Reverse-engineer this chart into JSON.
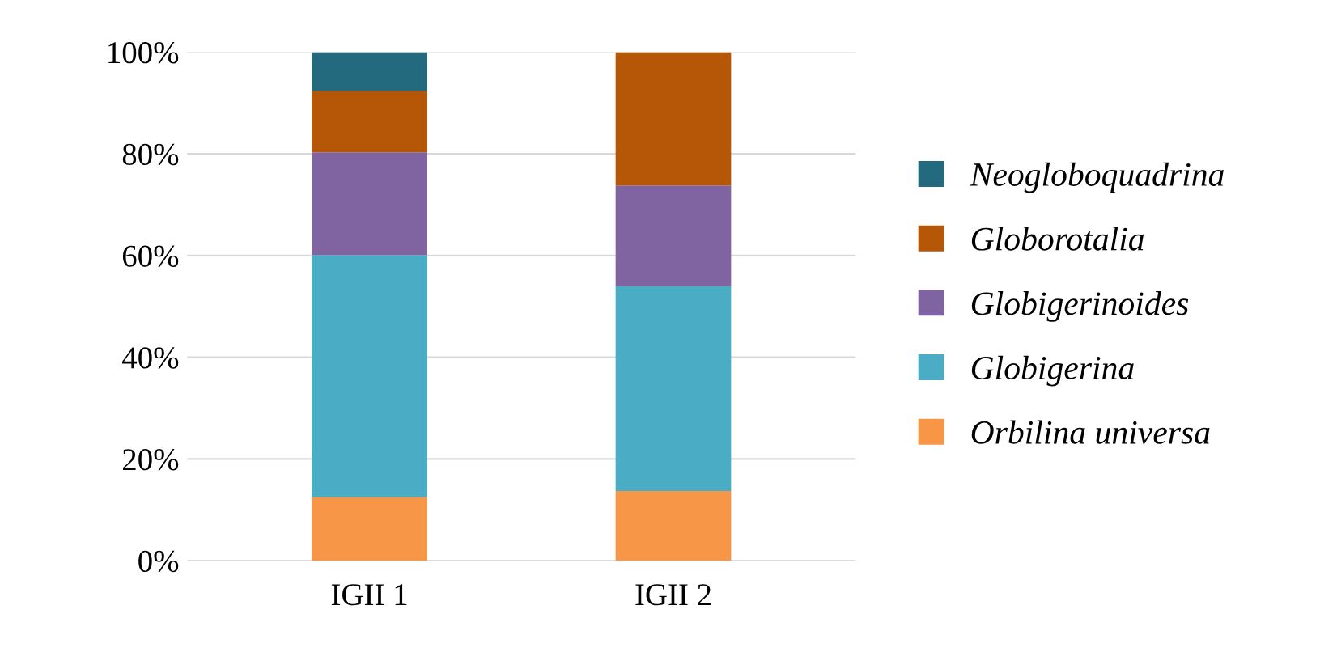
{
  "chart_data": {
    "type": "bar",
    "stacked": true,
    "categories": [
      "IGII 1",
      "IGII 2"
    ],
    "series": [
      {
        "name": "Orbilina universa",
        "color": "#f79646",
        "values": [
          12.5,
          13.7
        ]
      },
      {
        "name": "Globigerina",
        "color": "#4bacc6",
        "values": [
          47.6,
          40.3
        ]
      },
      {
        "name": "Globigerinoides",
        "color": "#8064a2",
        "values": [
          20.2,
          19.8
        ]
      },
      {
        "name": "Globorotalia",
        "color": "#b65708",
        "values": [
          12.1,
          26.2
        ]
      },
      {
        "name": "Neogloboquadrina",
        "color": "#246a7e",
        "values": [
          7.6,
          0
        ]
      }
    ],
    "ylim": [
      0,
      100
    ],
    "yticks": [
      {
        "value": 0,
        "label": "0%"
      },
      {
        "value": 20,
        "label": "20%"
      },
      {
        "value": 40,
        "label": "40%"
      },
      {
        "value": 60,
        "label": "60%"
      },
      {
        "value": 80,
        "label": "80%"
      },
      {
        "value": 100,
        "label": "100%"
      }
    ],
    "grid": "y",
    "legend": "right"
  }
}
